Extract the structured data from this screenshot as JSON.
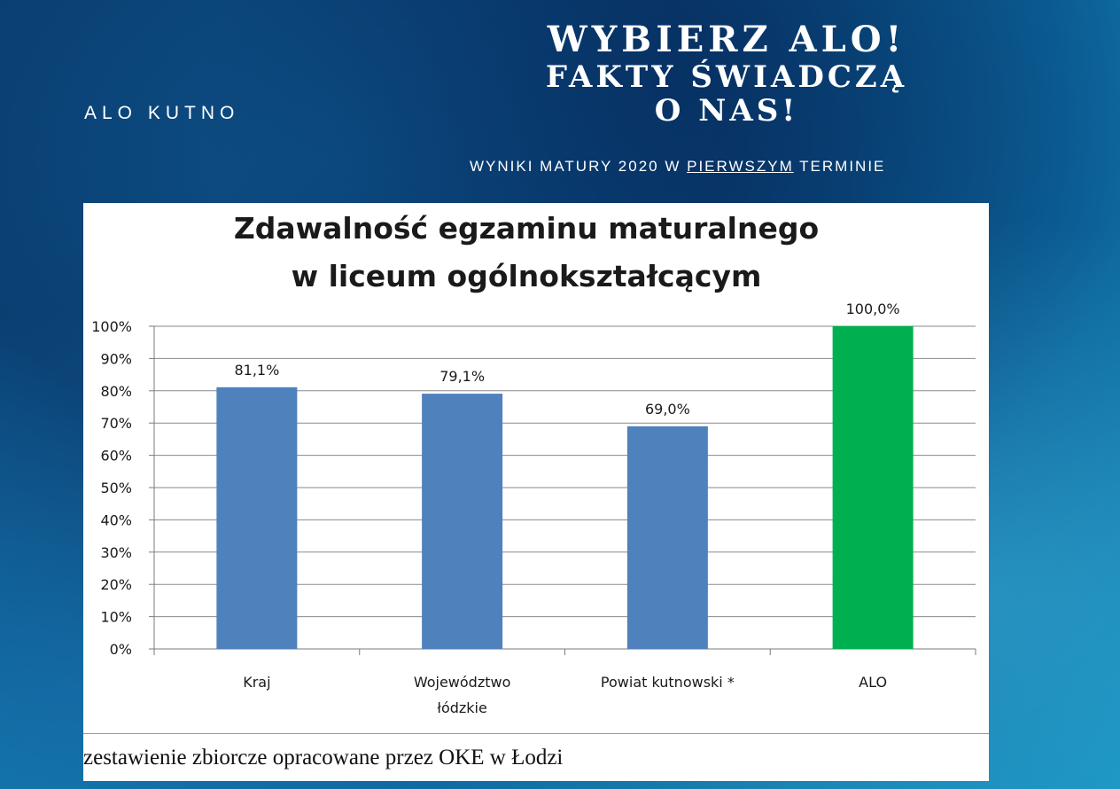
{
  "header": {
    "brand": "ALO KUTNO",
    "headline_line1": "WYBIERZ ALO!",
    "headline_line2": "FAKTY ŚWIADCZĄ",
    "headline_line3": "O NAS!",
    "subline_pre": "WYNIKI MATURY 2020 W ",
    "subline_underlined": "PIERWSZYM",
    "subline_post": " TERMINIE"
  },
  "chart_data": {
    "type": "bar",
    "title_line1": "Zdawalność egzaminu maturalnego",
    "title_line2": "w liceum ogólnokształcącym",
    "categories": [
      "Kraj",
      "Województwo łódzkie",
      "Powiat kutnowski *",
      "ALO"
    ],
    "category_lines": [
      [
        "Kraj"
      ],
      [
        "Województwo",
        "łódzkie"
      ],
      [
        "Powiat kutnowski *"
      ],
      [
        "ALO"
      ]
    ],
    "values": [
      81.1,
      79.1,
      69.0,
      100.0
    ],
    "data_labels": [
      "81,1%",
      "79,1%",
      "69,0%",
      "100,0%"
    ],
    "bar_colors": [
      "#4f81bd",
      "#4f81bd",
      "#4f81bd",
      "#00b050"
    ],
    "ylim": [
      0,
      100
    ],
    "yticks": [
      "0%",
      "10%",
      "20%",
      "30%",
      "40%",
      "50%",
      "60%",
      "70%",
      "80%",
      "90%",
      "100%"
    ],
    "grid": true,
    "source_note": "zestawienie zbiorcze opracowane przez OKE w Łodzi"
  }
}
